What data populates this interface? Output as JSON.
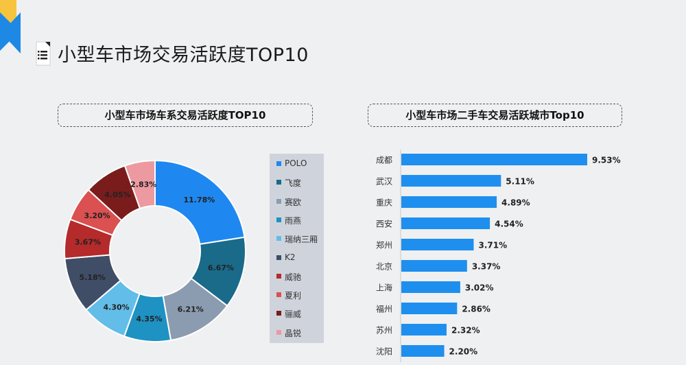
{
  "page": {
    "title": "小型车市场交易活跃度TOP10",
    "left_box_title": "小型车市场车系交易活跃度TOP10",
    "right_box_title": "小型车市场二手车交易活跃城市Top10"
  },
  "colors": {
    "bar": "#1e8fee",
    "corner_yellow": "#f6c43e",
    "corner_blue": "#1e88e5"
  },
  "chart_data": [
    {
      "type": "pie",
      "title": "小型车市场车系交易活跃度TOP10",
      "legend_position": "right",
      "categories": [
        "POLO",
        "飞度",
        "赛欧",
        "雨燕",
        "瑞纳三厢",
        "K2",
        "威驰",
        "夏利",
        "骊威",
        "晶锐"
      ],
      "values": [
        11.78,
        6.67,
        6.21,
        4.35,
        4.3,
        5.18,
        3.67,
        3.2,
        4.05,
        2.83
      ],
      "labels": [
        "11.78%",
        "6.67%",
        "6.21%",
        "4.35%",
        "4.30%",
        "5.18%",
        "3.67%",
        "3.20%",
        "4.05%",
        "2.83%"
      ],
      "colors": [
        "#1e88f0",
        "#1a6a8a",
        "#8b9bb0",
        "#1e92c2",
        "#62bde8",
        "#3f4d66",
        "#b52a2a",
        "#db5050",
        "#7a1c1c",
        "#ec9aa0"
      ]
    },
    {
      "type": "bar",
      "orientation": "horizontal",
      "title": "小型车市场二手车交易活跃城市Top10",
      "categories": [
        "成都",
        "武汉",
        "重庆",
        "西安",
        "郑州",
        "北京",
        "上海",
        "福州",
        "苏州",
        "沈阳"
      ],
      "values": [
        9.53,
        5.11,
        4.89,
        4.54,
        3.71,
        3.37,
        3.02,
        2.86,
        2.32,
        2.2
      ],
      "labels": [
        "9.53%",
        "5.11%",
        "4.89%",
        "4.54%",
        "3.71%",
        "3.37%",
        "3.02%",
        "2.86%",
        "2.32%",
        "2.20%"
      ]
    }
  ]
}
